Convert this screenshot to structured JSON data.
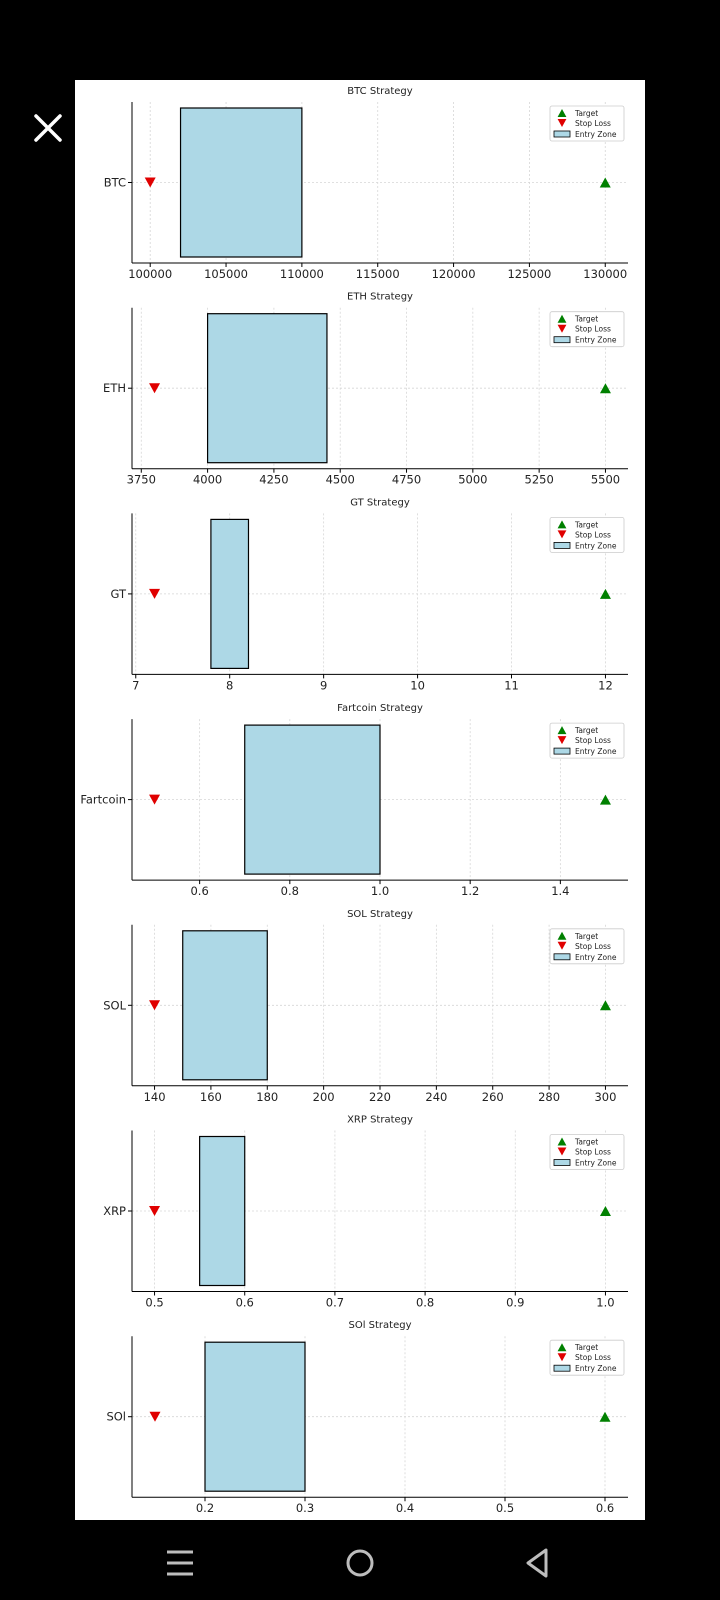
{
  "viewer": {
    "close_icon": "close-icon",
    "nav": {
      "recents_icon": "recents-icon",
      "home_icon": "home-icon",
      "back_icon": "back-icon"
    }
  },
  "colors": {
    "entry_fill": "#add8e6",
    "target": "#008000",
    "stop_loss": "#e00000",
    "background": "#000000",
    "chart_background": "#ffffff"
  },
  "legend": {
    "target": "Target",
    "stop_loss": "Stop Loss",
    "entry_zone": "Entry Zone",
    "placement": "top-right"
  },
  "chart_data": [
    {
      "type": "bar",
      "title": "BTC Strategy",
      "category": "BTC",
      "entry_zone": [
        102000,
        110000
      ],
      "stop_loss": 100000,
      "target": 130000,
      "xlim": [
        98800,
        131500
      ],
      "xticks": [
        100000,
        105000,
        110000,
        115000,
        120000,
        125000,
        130000
      ],
      "xtick_labels": [
        "100000",
        "105000",
        "110000",
        "115000",
        "120000",
        "125000",
        "130000"
      ],
      "grid": true
    },
    {
      "type": "bar",
      "title": "ETH Strategy",
      "category": "ETH",
      "entry_zone": [
        4000,
        4450
      ],
      "stop_loss": 3800,
      "target": 5500,
      "xlim": [
        3715,
        5585
      ],
      "xticks": [
        3750,
        4000,
        4250,
        4500,
        4750,
        5000,
        5250,
        5500
      ],
      "xtick_labels": [
        "3750",
        "4000",
        "4250",
        "4500",
        "4750",
        "5000",
        "5250",
        "5500"
      ],
      "grid": true
    },
    {
      "type": "bar",
      "title": "GT Strategy",
      "category": "GT",
      "entry_zone": [
        7.8,
        8.2
      ],
      "stop_loss": 7.2,
      "target": 12,
      "xlim": [
        6.96,
        12.24
      ],
      "xticks": [
        7,
        8,
        9,
        10,
        11,
        12
      ],
      "xtick_labels": [
        "7",
        "8",
        "9",
        "10",
        "11",
        "12"
      ],
      "grid": true
    },
    {
      "type": "bar",
      "title": "Fartcoin Strategy",
      "category": "Fartcoin",
      "entry_zone": [
        0.7,
        1.0
      ],
      "stop_loss": 0.5,
      "target": 1.5,
      "xlim": [
        0.45,
        1.55
      ],
      "xticks": [
        0.6,
        0.8,
        1.0,
        1.2,
        1.4
      ],
      "xtick_labels": [
        "0.6",
        "0.8",
        "1.0",
        "1.2",
        "1.4"
      ],
      "grid": true
    },
    {
      "type": "bar",
      "title": "SOL Strategy",
      "category": "SOL",
      "entry_zone": [
        150,
        180
      ],
      "stop_loss": 140,
      "target": 300,
      "xlim": [
        132,
        308
      ],
      "xticks": [
        140,
        160,
        180,
        200,
        220,
        240,
        260,
        280,
        300
      ],
      "xtick_labels": [
        "140",
        "160",
        "180",
        "200",
        "220",
        "240",
        "260",
        "280",
        "300"
      ],
      "grid": true
    },
    {
      "type": "bar",
      "title": "XRP Strategy",
      "category": "XRP",
      "entry_zone": [
        0.55,
        0.6
      ],
      "stop_loss": 0.5,
      "target": 1.0,
      "xlim": [
        0.475,
        1.025
      ],
      "xticks": [
        0.5,
        0.6,
        0.7,
        0.8,
        0.9,
        1.0
      ],
      "xtick_labels": [
        "0.5",
        "0.6",
        "0.7",
        "0.8",
        "0.9",
        "1.0"
      ],
      "grid": true
    },
    {
      "type": "bar",
      "title": "SOl Strategy",
      "category": "SOl",
      "entry_zone": [
        0.2,
        0.3
      ],
      "stop_loss": 0.15,
      "target": 0.6,
      "xlim": [
        0.127,
        0.623
      ],
      "xticks": [
        0.2,
        0.3,
        0.4,
        0.5,
        0.6
      ],
      "xtick_labels": [
        "0.2",
        "0.3",
        "0.4",
        "0.5",
        "0.6"
      ],
      "grid": true
    }
  ]
}
